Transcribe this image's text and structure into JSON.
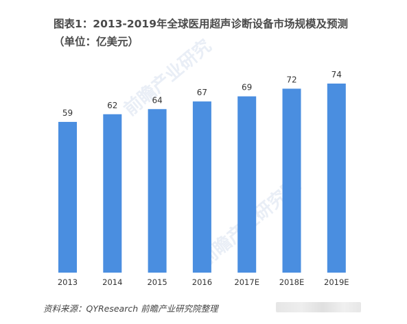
{
  "header": {
    "title": "图表1：2013-2019年全球医用超声诊断设备市场规模及预测（单位：亿美元）"
  },
  "footer": {
    "source": "资料来源：QYResearch 前瞻产业研究院整理"
  },
  "colors": {
    "bar": "#4a8ee0",
    "label": "#333333"
  },
  "chart_data": {
    "type": "bar",
    "title": "图表1：2013-2019年全球医用超声诊断设备市场规模及预测（单位：亿美元）",
    "categories": [
      "2013",
      "2014",
      "2015",
      "2016",
      "2017E",
      "2018E",
      "2019E"
    ],
    "values": [
      59,
      62,
      64,
      67,
      69,
      72,
      74
    ],
    "xlabel": "",
    "ylabel": "",
    "ylim": [
      0,
      74
    ],
    "grid": false,
    "legend": "none"
  }
}
